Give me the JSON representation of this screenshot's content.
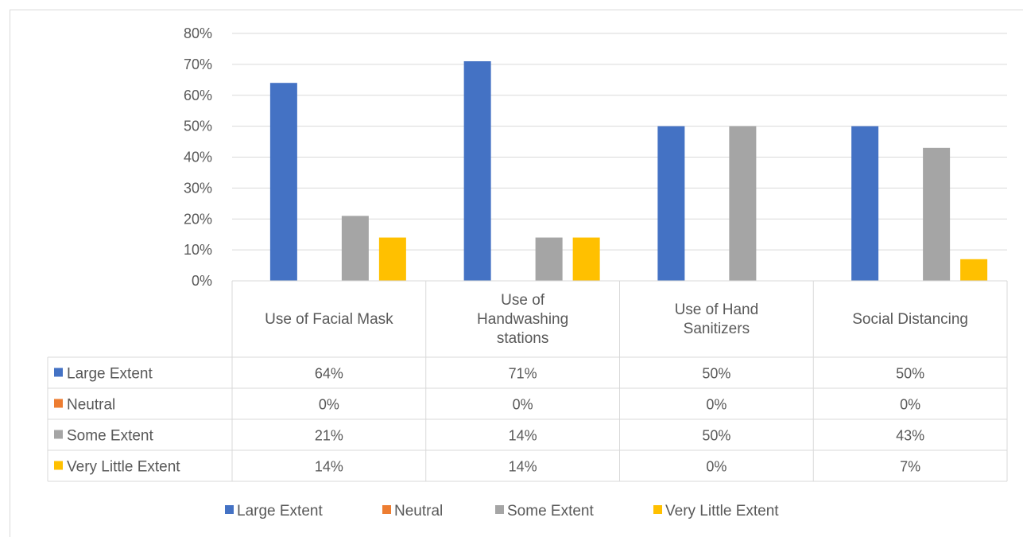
{
  "chart_data": {
    "type": "bar",
    "categories": [
      [
        "Use of Facial Mask"
      ],
      [
        "Use of",
        "Handwashing",
        "stations"
      ],
      [
        "Use of Hand",
        "Sanitizers"
      ],
      [
        "Social Distancing"
      ]
    ],
    "series": [
      {
        "name": "Large Extent",
        "color": "#4472c4",
        "values": [
          64,
          71,
          50,
          50
        ],
        "labels": [
          "64%",
          "71%",
          "50%",
          "50%"
        ]
      },
      {
        "name": "Neutral",
        "color": "#ed7d31",
        "values": [
          0,
          0,
          0,
          0
        ],
        "labels": [
          "0%",
          "0%",
          "0%",
          "0%"
        ]
      },
      {
        "name": "Some Extent",
        "color": "#a5a5a5",
        "values": [
          21,
          14,
          50,
          43
        ],
        "labels": [
          "21%",
          "14%",
          "50%",
          "43%"
        ]
      },
      {
        "name": "Very Little Extent",
        "color": "#ffc000",
        "values": [
          14,
          14,
          0,
          7
        ],
        "labels": [
          "14%",
          "14%",
          "0%",
          "7%"
        ]
      }
    ],
    "ylim": [
      0,
      80
    ],
    "yticks": [
      "0%",
      "10%",
      "20%",
      "30%",
      "40%",
      "50%",
      "60%",
      "70%",
      "80%"
    ],
    "grid": true,
    "data_table": true,
    "legend_position": "bottom"
  }
}
